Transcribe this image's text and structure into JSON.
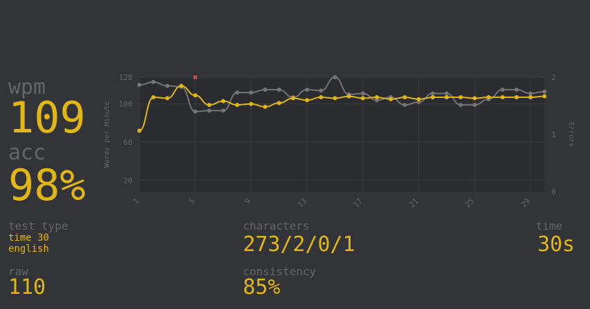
{
  "colors": {
    "background": "#323437",
    "plot_background": "#2b2c2f",
    "label": "#646669",
    "accent": "#e2b714",
    "raw_line": "#757575",
    "error_marker": "#e65b5b"
  },
  "stats": {
    "wpm_label": "wpm",
    "wpm_value": "109",
    "acc_label": "acc",
    "acc_value": "98%",
    "test_type_label": "test type",
    "test_type_line1": "time 30",
    "test_type_line2": "english",
    "raw_label": "raw",
    "raw_value": "110",
    "characters_label": "characters",
    "characters_value": "273/2/0/1",
    "consistency_label": "consistency",
    "consistency_value": "85%",
    "time_label": "time",
    "time_value": "30s"
  },
  "chart_data": {
    "type": "line",
    "x": [
      1,
      2,
      3,
      4,
      5,
      6,
      7,
      8,
      9,
      10,
      11,
      12,
      13,
      14,
      15,
      16,
      17,
      18,
      19,
      20,
      21,
      22,
      23,
      24,
      25,
      26,
      27,
      28,
      29,
      30
    ],
    "x_tick_labels": [
      "1",
      "5",
      "9",
      "13",
      "17",
      "21",
      "25",
      "29"
    ],
    "y_left_ticks": [
      20,
      60,
      100,
      128
    ],
    "y_left_range": [
      8,
      128
    ],
    "ylabel_left": "Words per Minute",
    "y_right_ticks": [
      0,
      1,
      2
    ],
    "y_right_range": [
      0,
      2
    ],
    "ylabel_right": "Errors",
    "series": [
      {
        "role": "raw",
        "color": "#757575",
        "values": [
          120,
          123,
          119,
          118,
          92,
          93,
          93,
          112,
          112,
          115,
          115,
          107,
          115,
          114,
          128,
          110,
          111,
          104,
          107,
          99,
          102,
          111,
          111,
          99,
          99,
          105,
          115,
          115,
          111,
          113
        ]
      },
      {
        "role": "wpm",
        "color": "#e2b714",
        "values": [
          72,
          107,
          106,
          119,
          109,
          99,
          103,
          99,
          100,
          97,
          101,
          106,
          104,
          107,
          106,
          108,
          106,
          107,
          105,
          107,
          105,
          107,
          107,
          107,
          106,
          107,
          107,
          107,
          107,
          108
        ]
      }
    ],
    "errors": [
      {
        "x": 5,
        "count": 2
      }
    ],
    "grid": true
  }
}
